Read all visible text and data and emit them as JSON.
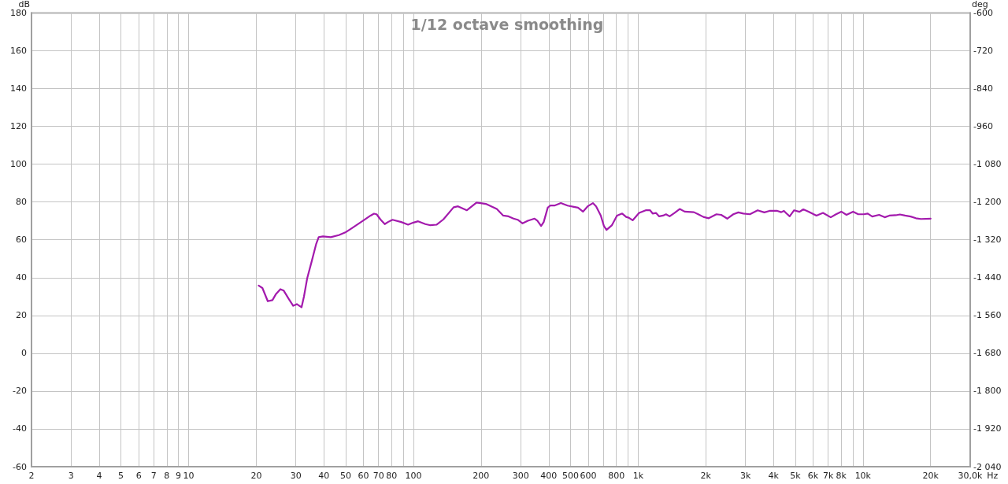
{
  "chart_data": {
    "type": "line",
    "title": "1/12 octave smoothing",
    "xlabel": "Hz",
    "ylabel": "dB",
    "y2label": "deg",
    "log": "x",
    "grid": true,
    "color": "#a31aad",
    "x": [
      20.5,
      21.3,
      22.5,
      23.6,
      24.5,
      25.6,
      26.5,
      27.9,
      29.2,
      30.3,
      31.1,
      31.8,
      32.6,
      33.7,
      35.3,
      36.9,
      37.9,
      39.6,
      42.9,
      46.6,
      49.8,
      53.3,
      59.2,
      64.5,
      66.8,
      68.6,
      71.3,
      74.6,
      77.1,
      80.7,
      88.3,
      94.7,
      100,
      105,
      113,
      119,
      127,
      136,
      151,
      158,
      173,
      191,
      210,
      235,
      251,
      265,
      279,
      291,
      306,
      323,
      346,
      356,
      370,
      380,
      396,
      406,
      424,
      453,
      485,
      518,
      540,
      568,
      596,
      629,
      650,
      682,
      704,
      723,
      763,
      805,
      849,
      884,
      908,
      945,
      1010,
      1080,
      1130,
      1160,
      1200,
      1240,
      1290,
      1330,
      1380,
      1450,
      1530,
      1610,
      1770,
      1850,
      1950,
      2060,
      2230,
      2340,
      2490,
      2650,
      2790,
      2940,
      3140,
      3400,
      3640,
      3840,
      4160,
      4330,
      4450,
      4570,
      4720,
      4940,
      5220,
      5430,
      5730,
      6210,
      6640,
      7190,
      7590,
      8010,
      8450,
      9040,
      9530,
      10100,
      10500,
      11000,
      11800,
      12500,
      13100,
      14000,
      14600,
      15400,
      16300,
      17200,
      18100,
      20000
    ],
    "values": [
      35.8,
      34.5,
      27.5,
      28.1,
      31.4,
      33.9,
      33.1,
      28.7,
      25.1,
      26.0,
      25.1,
      24.3,
      30.0,
      39.7,
      48.7,
      57.6,
      61.4,
      61.8,
      61.4,
      62.5,
      63.9,
      66.2,
      69.8,
      72.8,
      73.8,
      73.5,
      70.8,
      68.3,
      69.4,
      70.6,
      69.4,
      68.0,
      69.1,
      69.8,
      68.3,
      67.7,
      68.0,
      70.8,
      77.2,
      77.7,
      75.6,
      79.7,
      79.0,
      76.3,
      72.8,
      72.4,
      71.2,
      70.6,
      68.7,
      70.1,
      71.2,
      70.1,
      67.3,
      69.4,
      77.0,
      78.1,
      78.1,
      79.4,
      78.1,
      77.4,
      77.0,
      74.9,
      77.7,
      79.4,
      77.7,
      72.8,
      67.3,
      65.2,
      67.6,
      72.8,
      73.9,
      72.1,
      71.7,
      70.3,
      74.2,
      75.6,
      75.6,
      73.9,
      74.2,
      72.4,
      72.8,
      73.5,
      72.4,
      74.2,
      76.3,
      74.9,
      74.6,
      73.5,
      72.1,
      71.4,
      73.5,
      73.2,
      71.2,
      73.5,
      74.5,
      73.9,
      73.5,
      75.6,
      74.5,
      75.3,
      75.3,
      74.6,
      75.3,
      73.9,
      72.4,
      75.6,
      74.8,
      76.1,
      74.9,
      72.8,
      74.2,
      71.9,
      73.5,
      74.9,
      73.2,
      74.9,
      73.5,
      73.5,
      73.9,
      72.3,
      73.2,
      71.9,
      72.8,
      73.0,
      73.4,
      72.8,
      72.3,
      71.4,
      71.0,
      71.2
    ],
    "xlim": [
      2,
      30000
    ],
    "xticks": [
      2,
      3,
      4,
      5,
      6,
      7,
      8,
      9,
      10,
      20,
      30,
      40,
      50,
      60,
      70,
      80,
      {
        "value": 90,
        "label": null
      },
      100,
      200,
      300,
      400,
      500,
      600,
      {
        "value": 700,
        "label": null
      },
      800,
      {
        "value": 900,
        "label": null
      },
      {
        "value": 1000,
        "label": "1k"
      },
      {
        "value": 2000,
        "label": "2k"
      },
      {
        "value": 3000,
        "label": "3k"
      },
      {
        "value": 4000,
        "label": "4k"
      },
      {
        "value": 5000,
        "label": "5k"
      },
      {
        "value": 6000,
        "label": "6k"
      },
      {
        "value": 7000,
        "label": "7k"
      },
      {
        "value": 8000,
        "label": "8k"
      },
      {
        "value": 9000,
        "label": null
      },
      {
        "value": 10000,
        "label": "10k"
      },
      {
        "value": 20000,
        "label": "20k"
      },
      {
        "value": 30000,
        "label": "30,0k"
      }
    ],
    "ylim": [
      -60,
      180
    ],
    "yticks": [
      -60,
      -40,
      -20,
      0,
      20,
      40,
      60,
      80,
      100,
      120,
      140,
      160,
      180
    ],
    "y2lim": [
      -2040,
      -600
    ],
    "y2ticks": [
      {
        "value": -2040,
        "label": "-2 040"
      },
      {
        "value": -1920,
        "label": "-1 920"
      },
      {
        "value": -1800,
        "label": "-1 800"
      },
      {
        "value": -1680,
        "label": "-1 680"
      },
      {
        "value": -1560,
        "label": "-1 560"
      },
      {
        "value": -1440,
        "label": "-1 440"
      },
      {
        "value": -1320,
        "label": "-1 320"
      },
      {
        "value": -1200,
        "label": "-1 200"
      },
      {
        "value": -1080,
        "label": "-1 080"
      },
      -960,
      -840,
      -720,
      -600
    ]
  }
}
